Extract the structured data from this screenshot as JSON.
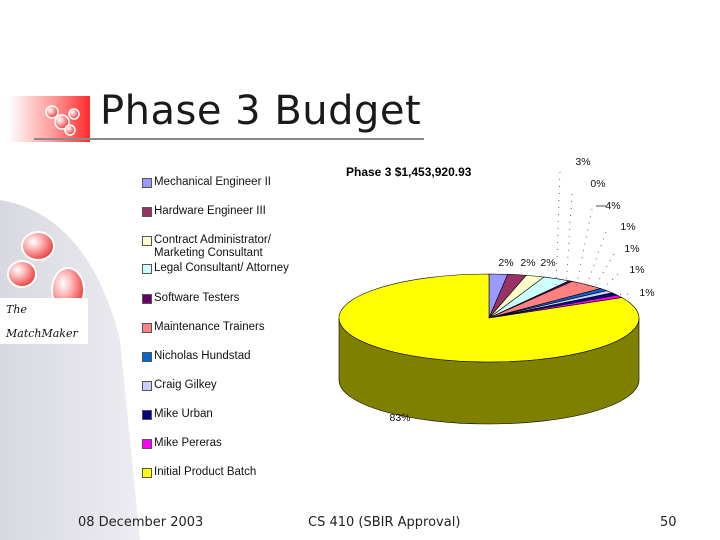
{
  "slide": {
    "title": "Phase 3 Budget",
    "logo_line1": "The",
    "logo_line2": "MatchMaker",
    "footer_date": "08 December 2003",
    "footer_course": "CS 410 (SBIR Approval)",
    "page_number": "50"
  },
  "colors": {
    "accent_red": "#ff4040",
    "pie_dark_yellow": "#808000"
  },
  "chart_data": {
    "type": "pie",
    "title": "Phase 3  $1,453,920.93",
    "legend_position": "left",
    "slices": [
      {
        "name": "Mechanical Engineer II",
        "value": 2,
        "label": "2%",
        "color": "#9999ff"
      },
      {
        "name": "Hardware Engineer III",
        "value": 2,
        "label": "2%",
        "color": "#993366"
      },
      {
        "name": "Contract Administrator/\nMarketing Consultant",
        "value": 2,
        "label": "2%",
        "color": "#ffffcc"
      },
      {
        "name": "Legal Consultant/ Attorney",
        "value": 3,
        "label": "3%",
        "color": "#ccffff"
      },
      {
        "name": "Software Testers",
        "value": 0.4,
        "label": "0%",
        "color": "#660066"
      },
      {
        "name": "Maintenance Trainers",
        "value": 4,
        "label": "4%",
        "color": "#ff8080"
      },
      {
        "name": "Nicholas Hundstad",
        "value": 1,
        "label": "1%",
        "color": "#0066cc"
      },
      {
        "name": "Craig Gilkey",
        "value": 1,
        "label": "1%",
        "color": "#ccccff"
      },
      {
        "name": "Mike Urban",
        "value": 1,
        "label": "1%",
        "color": "#000080"
      },
      {
        "name": "Mike Pereras",
        "value": 1,
        "label": "1%",
        "color": "#ff00ff"
      },
      {
        "name": "Initial Product Batch",
        "value": 83,
        "label": "83%",
        "color": "#ffff00"
      }
    ]
  }
}
